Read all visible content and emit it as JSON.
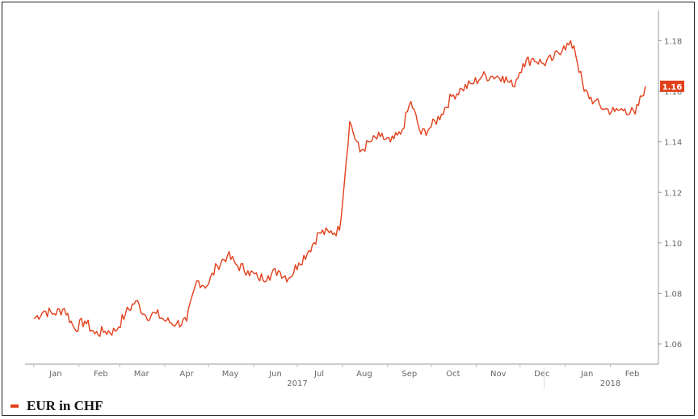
{
  "chart_data": {
    "type": "line",
    "series": [
      {
        "name": "EUR in CHF",
        "color": "#e2401c",
        "x": [
          "2017-01-01",
          "2017-01-08",
          "2017-01-15",
          "2017-01-22",
          "2017-01-29",
          "2017-02-05",
          "2017-02-12",
          "2017-02-19",
          "2017-02-26",
          "2017-03-05",
          "2017-03-12",
          "2017-03-19",
          "2017-03-26",
          "2017-04-02",
          "2017-04-09",
          "2017-04-16",
          "2017-04-23",
          "2017-04-30",
          "2017-05-07",
          "2017-05-14",
          "2017-05-21",
          "2017-05-28",
          "2017-06-04",
          "2017-06-11",
          "2017-06-18",
          "2017-06-25",
          "2017-07-02",
          "2017-07-09",
          "2017-07-16",
          "2017-07-23",
          "2017-07-30",
          "2017-08-06",
          "2017-08-13",
          "2017-08-20",
          "2017-08-27",
          "2017-09-03",
          "2017-09-10",
          "2017-09-17",
          "2017-09-24",
          "2017-10-01",
          "2017-10-08",
          "2017-10-15",
          "2017-10-22",
          "2017-10-29",
          "2017-11-05",
          "2017-11-12",
          "2017-11-19",
          "2017-11-26",
          "2017-12-03",
          "2017-12-10",
          "2017-12-17",
          "2017-12-24",
          "2017-12-31",
          "2018-01-07",
          "2018-01-14",
          "2018-01-21",
          "2018-01-28",
          "2018-02-04",
          "2018-02-11",
          "2018-02-18",
          "2018-02-25"
        ],
        "values": [
          1.07,
          1.073,
          1.072,
          1.074,
          1.066,
          1.069,
          1.064,
          1.065,
          1.065,
          1.072,
          1.077,
          1.071,
          1.072,
          1.069,
          1.068,
          1.069,
          1.085,
          1.083,
          1.091,
          1.095,
          1.091,
          1.089,
          1.086,
          1.087,
          1.089,
          1.086,
          1.092,
          1.097,
          1.104,
          1.104,
          1.105,
          1.148,
          1.136,
          1.14,
          1.142,
          1.14,
          1.143,
          1.156,
          1.143,
          1.146,
          1.151,
          1.158,
          1.161,
          1.163,
          1.166,
          1.166,
          1.166,
          1.162,
          1.171,
          1.173,
          1.171,
          1.173,
          1.178,
          1.178,
          1.16,
          1.156,
          1.153,
          1.152,
          1.153,
          1.151,
          1.162
        ]
      }
    ],
    "xlabels": [
      "Jan",
      "Feb",
      "Mar",
      "Apr",
      "May",
      "Jun",
      "Jul",
      "Aug",
      "Sep",
      "Oct",
      "Nov",
      "Dec",
      "Jan",
      "Feb"
    ],
    "year_labels": [
      "2017",
      "2018"
    ],
    "yticks": [
      "1.06",
      "1.08",
      "1.10",
      "1.12",
      "1.14",
      "1.16",
      "1.18"
    ],
    "ylim": [
      1.052,
      1.192
    ],
    "y_axis_position": "right",
    "last_value_label": "1.16",
    "last_value_color": "#e2401c",
    "grid": false,
    "legend_position": "bottom-left"
  },
  "legend": {
    "label": "EUR in CHF",
    "color": "#e2401c"
  }
}
